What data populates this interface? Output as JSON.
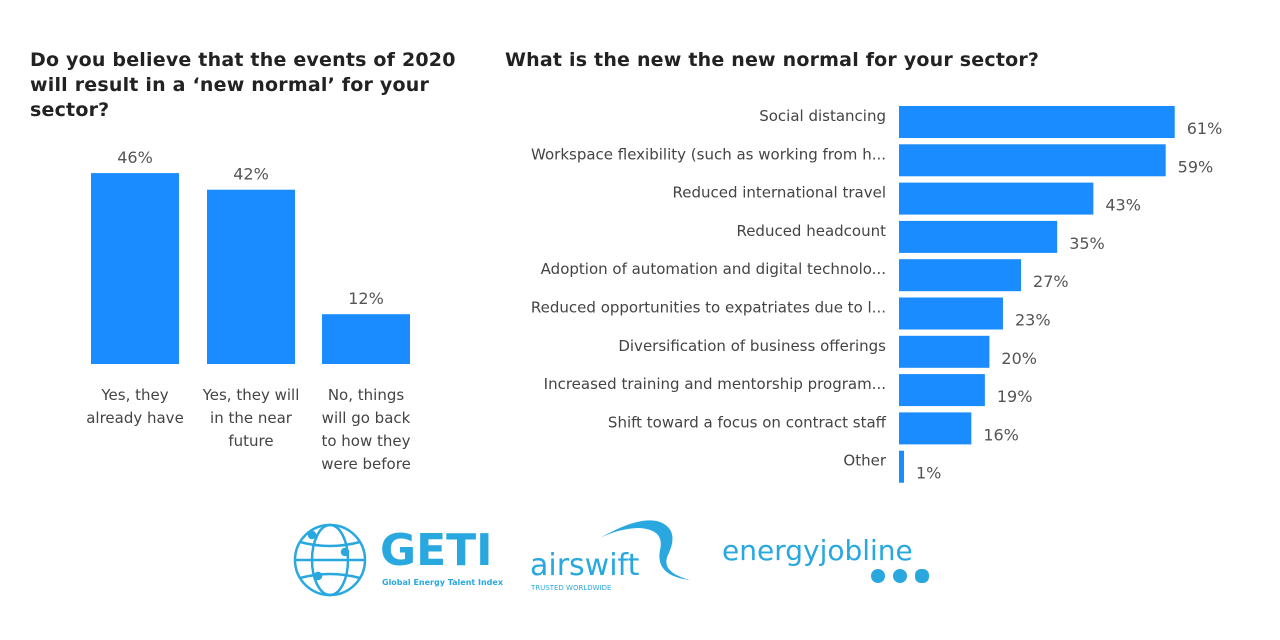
{
  "chart_data": [
    {
      "type": "bar",
      "orientation": "vertical",
      "title": "Do you believe that the events of 2020 will result in a ‘new normal’ for your sector?",
      "categories": [
        [
          "Yes, they",
          "already have"
        ],
        [
          "Yes, they will",
          "in the near",
          "future"
        ],
        [
          "No, things",
          "will go back",
          "to how they",
          "were before"
        ]
      ],
      "values": [
        46,
        42,
        12
      ],
      "data_labels": [
        "46%",
        "42%",
        "12%"
      ],
      "unit": "%",
      "color": "#1a8cff"
    },
    {
      "type": "bar",
      "orientation": "horizontal",
      "title": "What is the new the new normal for your sector?",
      "categories": [
        "Social distancing",
        "Workspace flexibility (such as working from h...",
        "Reduced international travel",
        "Reduced headcount",
        "Adoption of automation and digital technolo...",
        "Reduced opportunities to expatriates due to l...",
        "Diversification of business offerings",
        "Increased training and mentorship program...",
        "Shift toward a focus on contract staff",
        "Other"
      ],
      "values": [
        61,
        59,
        43,
        35,
        27,
        23,
        20,
        19,
        16,
        1
      ],
      "data_labels": [
        "61%",
        "59%",
        "43%",
        "35%",
        "27%",
        "23%",
        "20%",
        "19%",
        "16%",
        "1%"
      ],
      "unit": "%",
      "color": "#1a8cff"
    }
  ],
  "logos": {
    "geti": {
      "name": "GETI",
      "tagline": "Global Energy Talent Index"
    },
    "airswift": {
      "name": "airswift",
      "tagline": "TRUSTED WORLDWIDE"
    },
    "energyjobline": {
      "name": "energyjobline"
    }
  },
  "colors": {
    "bar": "#1a8cff",
    "logo": "#29a8e0"
  }
}
